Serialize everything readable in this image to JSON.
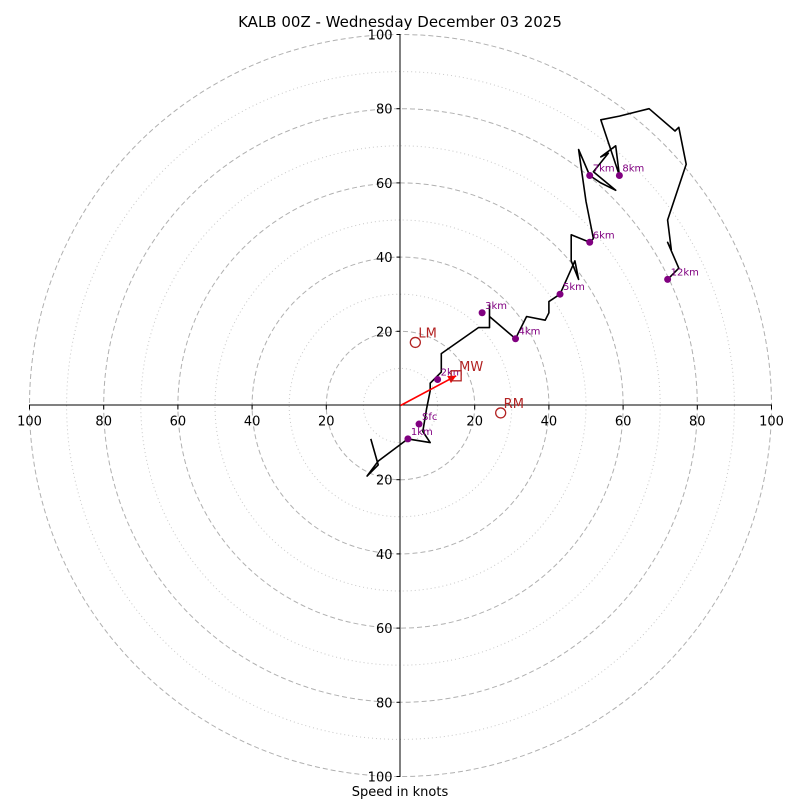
{
  "chart_data": {
    "type": "hodograph",
    "title": "KALB 00Z - Wednesday December 03 2025",
    "xlabel": "Speed in knots",
    "units": "knots",
    "range": [
      -100,
      100
    ],
    "ring_speeds_dashed": [
      20,
      40,
      60,
      80,
      100
    ],
    "ring_speeds_dotted": [
      10,
      30,
      50,
      70,
      90
    ],
    "x_ticks": [
      {
        "value": -100,
        "label": "100"
      },
      {
        "value": -80,
        "label": "80"
      },
      {
        "value": -60,
        "label": "60"
      },
      {
        "value": -40,
        "label": "40"
      },
      {
        "value": -20,
        "label": "20"
      },
      {
        "value": 20,
        "label": "20"
      },
      {
        "value": 40,
        "label": "40"
      },
      {
        "value": 60,
        "label": "60"
      },
      {
        "value": 80,
        "label": "80"
      },
      {
        "value": 100,
        "label": "100"
      }
    ],
    "y_ticks": [
      {
        "value": 100,
        "label": "100"
      },
      {
        "value": 80,
        "label": "80"
      },
      {
        "value": 60,
        "label": "60"
      },
      {
        "value": 40,
        "label": "40"
      },
      {
        "value": 20,
        "label": "20"
      },
      {
        "value": -20,
        "label": "20"
      },
      {
        "value": -40,
        "label": "40"
      },
      {
        "value": -60,
        "label": "60"
      },
      {
        "value": -80,
        "label": "80"
      },
      {
        "value": -100,
        "label": "100"
      }
    ],
    "trace": [
      [
        -8,
        -9
      ],
      [
        -6,
        -16
      ],
      [
        -9,
        -19
      ],
      [
        -6,
        -15
      ],
      [
        2,
        -9
      ],
      [
        8,
        -10
      ],
      [
        6,
        -7
      ],
      [
        7,
        -1
      ],
      [
        8,
        4
      ],
      [
        8,
        6
      ],
      [
        11,
        9
      ],
      [
        11,
        14
      ],
      [
        21,
        21
      ],
      [
        24,
        21
      ],
      [
        24,
        27
      ],
      [
        24,
        24
      ],
      [
        31,
        18
      ],
      [
        34,
        24
      ],
      [
        39,
        23
      ],
      [
        40,
        25
      ],
      [
        40,
        28
      ],
      [
        43,
        30
      ],
      [
        47,
        39
      ],
      [
        48,
        34
      ],
      [
        46,
        39
      ],
      [
        46,
        46
      ],
      [
        51,
        44
      ],
      [
        52,
        45
      ],
      [
        50,
        55
      ],
      [
        48,
        69
      ],
      [
        51,
        62
      ],
      [
        54,
        60
      ],
      [
        58,
        58
      ],
      [
        52,
        63
      ],
      [
        56,
        68
      ],
      [
        54,
        67
      ],
      [
        58,
        70
      ],
      [
        59,
        62
      ],
      [
        54,
        77
      ],
      [
        59,
        78
      ],
      [
        67,
        80
      ],
      [
        74,
        74
      ],
      [
        75,
        75
      ],
      [
        77,
        65
      ],
      [
        72,
        50
      ],
      [
        73,
        42
      ],
      [
        72,
        44
      ],
      [
        75,
        37
      ],
      [
        72,
        34
      ]
    ],
    "height_markers": [
      {
        "label": "Sfc",
        "u": 5,
        "v": -5
      },
      {
        "label": "1km",
        "u": 2,
        "v": -9
      },
      {
        "label": "2km",
        "u": 10,
        "v": 7
      },
      {
        "label": "3km",
        "u": 22,
        "v": 25
      },
      {
        "label": "4km",
        "u": 31,
        "v": 18
      },
      {
        "label": "5km",
        "u": 43,
        "v": 30
      },
      {
        "label": "6km",
        "u": 51,
        "v": 44
      },
      {
        "label": "7km",
        "u": 51,
        "v": 62
      },
      {
        "label": "8km",
        "u": 59,
        "v": 62
      },
      {
        "label": "12km",
        "u": 72,
        "v": 34
      }
    ],
    "motion_markers": [
      {
        "label": "LM",
        "u": 4,
        "v": 17,
        "symbol": "circle"
      },
      {
        "label": "MW",
        "u": 15,
        "v": 8,
        "symbol": "square"
      },
      {
        "label": "RM",
        "u": 27,
        "v": -2,
        "symbol": "circle"
      }
    ],
    "mean_wind_vector": {
      "u": 15,
      "v": 8
    },
    "colors": {
      "trace": "#000000",
      "height_marker": "#800080",
      "motion": "#b22222",
      "vector": "#ff0000",
      "grid": "#b0b0b0"
    }
  }
}
